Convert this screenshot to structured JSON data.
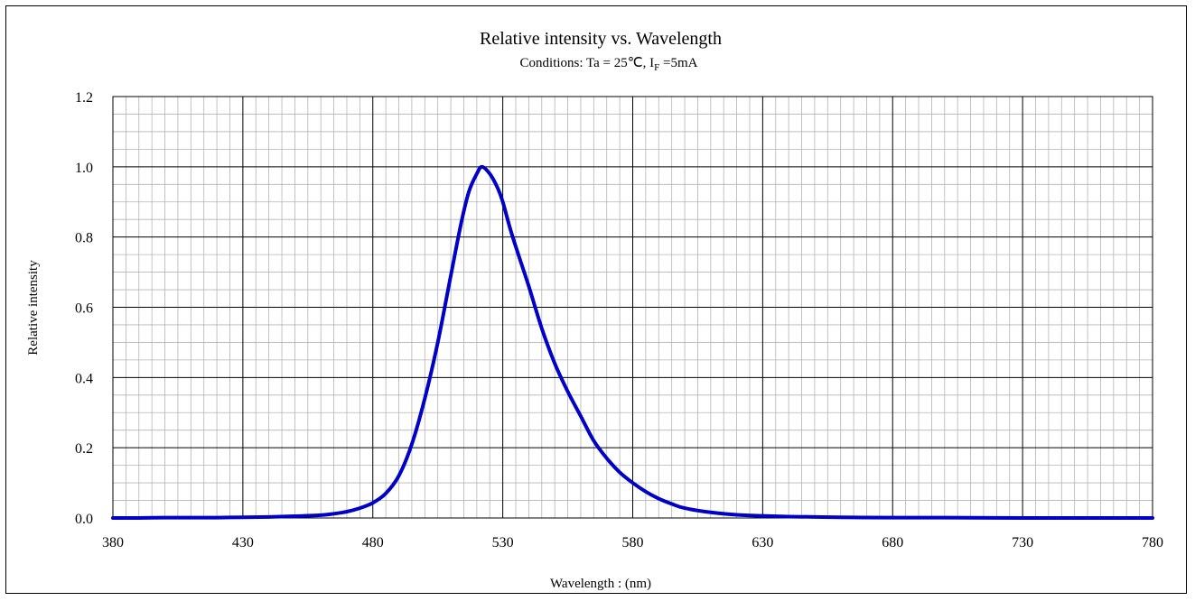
{
  "chart_data": {
    "type": "line",
    "title": "Relative intensity vs. Wavelength",
    "subtitle": {
      "prefix": "Conditions: Ta = 25℃, I",
      "subscript": "F",
      "suffix": " =5mA"
    },
    "xlabel": "Wavelength : (nm)",
    "ylabel": "Relative intensity",
    "xlim": [
      380,
      780
    ],
    "ylim": [
      0,
      1.2
    ],
    "x_ticks": [
      "380",
      "430",
      "480",
      "530",
      "580",
      "630",
      "680",
      "730",
      "780"
    ],
    "y_ticks": [
      "0.0",
      "0.2",
      "0.4",
      "0.6",
      "0.8",
      "1.0",
      "1.2"
    ],
    "grid": "major and minor",
    "series": [
      {
        "color": "#0000c8",
        "points": [
          [
            380,
            0.0
          ],
          [
            390,
            0.0
          ],
          [
            400,
            0.001
          ],
          [
            410,
            0.001
          ],
          [
            420,
            0.001
          ],
          [
            430,
            0.002
          ],
          [
            440,
            0.003
          ],
          [
            450,
            0.005
          ],
          [
            460,
            0.008
          ],
          [
            465,
            0.012
          ],
          [
            470,
            0.018
          ],
          [
            475,
            0.028
          ],
          [
            480,
            0.043
          ],
          [
            485,
            0.07
          ],
          [
            490,
            0.12
          ],
          [
            495,
            0.21
          ],
          [
            500,
            0.34
          ],
          [
            505,
            0.5
          ],
          [
            510,
            0.69
          ],
          [
            514,
            0.84
          ],
          [
            517,
            0.93
          ],
          [
            520,
            0.98
          ],
          [
            522,
            1.0
          ],
          [
            525,
            0.98
          ],
          [
            528,
            0.94
          ],
          [
            530,
            0.9
          ],
          [
            533,
            0.82
          ],
          [
            536,
            0.75
          ],
          [
            540,
            0.66
          ],
          [
            545,
            0.54
          ],
          [
            550,
            0.44
          ],
          [
            555,
            0.36
          ],
          [
            560,
            0.29
          ],
          [
            565,
            0.22
          ],
          [
            570,
            0.17
          ],
          [
            575,
            0.13
          ],
          [
            580,
            0.1
          ],
          [
            585,
            0.075
          ],
          [
            590,
            0.055
          ],
          [
            595,
            0.04
          ],
          [
            600,
            0.028
          ],
          [
            610,
            0.016
          ],
          [
            620,
            0.009
          ],
          [
            630,
            0.006
          ],
          [
            640,
            0.004
          ],
          [
            660,
            0.002
          ],
          [
            680,
            0.001
          ],
          [
            700,
            0.001
          ],
          [
            730,
            0.0
          ],
          [
            760,
            0.0
          ],
          [
            780,
            0.0
          ]
        ]
      }
    ]
  }
}
